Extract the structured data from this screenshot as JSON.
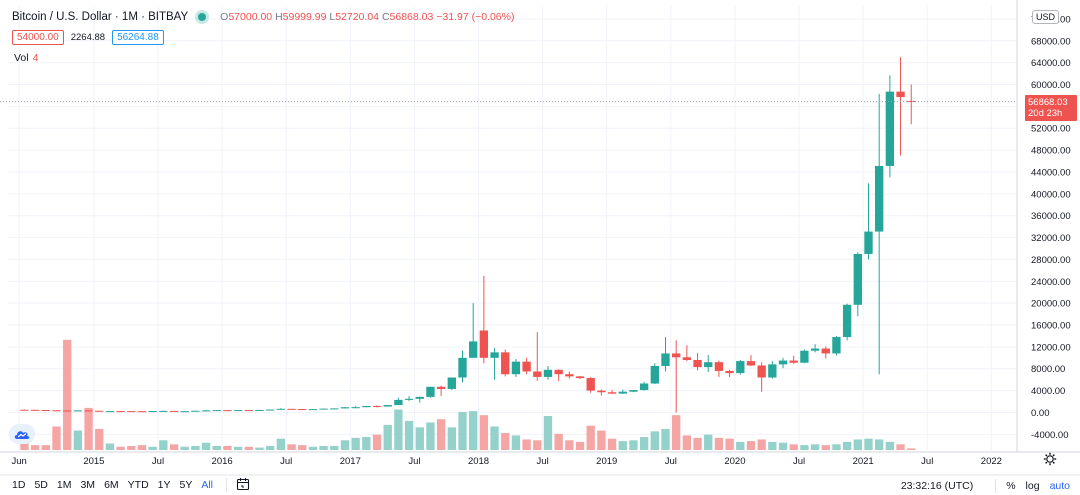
{
  "legend": {
    "title": "Bitcoin / U.S. Dollar · 1M · BITBAY",
    "open_label": "O",
    "open": "57000.00",
    "high_label": "H",
    "high": "59999.99",
    "low_label": "L",
    "low": "52720.04",
    "close_label": "C",
    "close": "56868.03",
    "change": "−31.97 (−0.06%)"
  },
  "bid": "54000.00",
  "spread": "2264.88",
  "ask": "56264.88",
  "volume": {
    "label": "Vol",
    "value": "4"
  },
  "currency": "USD",
  "price_tag": {
    "price": "56868.03",
    "countdown": "20d 23h"
  },
  "toolbar": {
    "ranges": [
      "1D",
      "5D",
      "1M",
      "3M",
      "6M",
      "YTD",
      "1Y",
      "5Y",
      "All"
    ],
    "active_range": "All",
    "time": "23:32:16 (UTC)",
    "percent": "%",
    "log": "log",
    "auto": "auto"
  },
  "colors": {
    "up": "#26a69a",
    "down": "#ef5350",
    "volume_up": "#94d1cb",
    "volume_down": "#f5a6a4",
    "grid": "#f0f3fa",
    "axis_text": "#131722"
  },
  "icons": [
    "tradingview-logo-icon",
    "calendar-icon",
    "settings-gear-icon"
  ],
  "chart_data": {
    "type": "candlestick",
    "interval": "1M",
    "price_axis": {
      "ticks": [
        "-4000.00",
        "0.00",
        "4000.00",
        "8000.00",
        "12000.00",
        "16000.00",
        "20000.00",
        "24000.00",
        "28000.00",
        "32000.00",
        "36000.00",
        "40000.00",
        "44000.00",
        "48000.00",
        "52000.00",
        "56000.00",
        "60000.00",
        "64000.00",
        "68000.00",
        "72000.00"
      ],
      "range": [
        -6500,
        74000
      ]
    },
    "time_axis": {
      "ticks": [
        {
          "label": "Jun",
          "t": 2014.417
        },
        {
          "label": "2015",
          "t": 2015.0
        },
        {
          "label": "Jul",
          "t": 2015.5
        },
        {
          "label": "2016",
          "t": 2016.0
        },
        {
          "label": "Jul",
          "t": 2016.5
        },
        {
          "label": "2017",
          "t": 2017.0
        },
        {
          "label": "Jul",
          "t": 2017.5
        },
        {
          "label": "2018",
          "t": 2018.0
        },
        {
          "label": "Jul",
          "t": 2018.5
        },
        {
          "label": "2019",
          "t": 2019.0
        },
        {
          "label": "Jul",
          "t": 2019.5
        },
        {
          "label": "2020",
          "t": 2020.0
        },
        {
          "label": "Jul",
          "t": 2020.5
        },
        {
          "label": "2021",
          "t": 2021.0
        },
        {
          "label": "Jul",
          "t": 2021.5
        },
        {
          "label": "2022",
          "t": 2022.0
        }
      ],
      "range": [
        2014.33,
        2022.2
      ]
    },
    "last_price": 56868.03,
    "candles": [
      {
        "t": "2014-06",
        "o": 500,
        "h": 520,
        "l": 470,
        "c": 480,
        "v": 0.8
      },
      {
        "t": "2014-07",
        "o": 480,
        "h": 500,
        "l": 440,
        "c": 450,
        "v": 0.6
      },
      {
        "t": "2014-08",
        "o": 450,
        "h": 460,
        "l": 390,
        "c": 400,
        "v": 0.6
      },
      {
        "t": "2014-09",
        "o": 400,
        "h": 420,
        "l": 350,
        "c": 360,
        "v": 2.9
      },
      {
        "t": "2014-10",
        "o": 360,
        "h": 380,
        "l": 330,
        "c": 340,
        "v": 13.6
      },
      {
        "t": "2014-11",
        "o": 340,
        "h": 440,
        "l": 330,
        "c": 380,
        "v": 2.4
      },
      {
        "t": "2014-12",
        "o": 380,
        "h": 400,
        "l": 300,
        "c": 310,
        "v": 5.2
      },
      {
        "t": "2015-01",
        "o": 310,
        "h": 320,
        "l": 160,
        "c": 220,
        "v": 2.6
      },
      {
        "t": "2015-02",
        "o": 220,
        "h": 270,
        "l": 210,
        "c": 250,
        "v": 0.8
      },
      {
        "t": "2015-03",
        "o": 250,
        "h": 290,
        "l": 240,
        "c": 245,
        "v": 0.4
      },
      {
        "t": "2015-04",
        "o": 245,
        "h": 260,
        "l": 210,
        "c": 235,
        "v": 0.5
      },
      {
        "t": "2015-05",
        "o": 235,
        "h": 245,
        "l": 225,
        "c": 230,
        "v": 0.6
      },
      {
        "t": "2015-06",
        "o": 230,
        "h": 265,
        "l": 220,
        "c": 262,
        "v": 0.4
      },
      {
        "t": "2015-07",
        "o": 262,
        "h": 320,
        "l": 255,
        "c": 285,
        "v": 1.2
      },
      {
        "t": "2015-08",
        "o": 285,
        "h": 300,
        "l": 200,
        "c": 230,
        "v": 0.7
      },
      {
        "t": "2015-09",
        "o": 230,
        "h": 245,
        "l": 225,
        "c": 236,
        "v": 0.4
      },
      {
        "t": "2015-10",
        "o": 236,
        "h": 330,
        "l": 235,
        "c": 315,
        "v": 0.5
      },
      {
        "t": "2015-11",
        "o": 315,
        "h": 500,
        "l": 300,
        "c": 378,
        "v": 0.9
      },
      {
        "t": "2015-12",
        "o": 378,
        "h": 470,
        "l": 350,
        "c": 430,
        "v": 0.5
      },
      {
        "t": "2016-01",
        "o": 430,
        "h": 460,
        "l": 350,
        "c": 370,
        "v": 0.5
      },
      {
        "t": "2016-02",
        "o": 370,
        "h": 440,
        "l": 360,
        "c": 437,
        "v": 0.4
      },
      {
        "t": "2016-03",
        "o": 437,
        "h": 440,
        "l": 400,
        "c": 416,
        "v": 0.4
      },
      {
        "t": "2016-04",
        "o": 416,
        "h": 470,
        "l": 410,
        "c": 448,
        "v": 0.3
      },
      {
        "t": "2016-05",
        "o": 448,
        "h": 550,
        "l": 440,
        "c": 530,
        "v": 0.5
      },
      {
        "t": "2016-06",
        "o": 530,
        "h": 780,
        "l": 520,
        "c": 670,
        "v": 1.4
      },
      {
        "t": "2016-07",
        "o": 670,
        "h": 680,
        "l": 600,
        "c": 624,
        "v": 0.7
      },
      {
        "t": "2016-08",
        "o": 624,
        "h": 630,
        "l": 480,
        "c": 575,
        "v": 0.6
      },
      {
        "t": "2016-09",
        "o": 575,
        "h": 620,
        "l": 570,
        "c": 609,
        "v": 0.4
      },
      {
        "t": "2016-10",
        "o": 609,
        "h": 720,
        "l": 605,
        "c": 700,
        "v": 0.5
      },
      {
        "t": "2016-11",
        "o": 700,
        "h": 760,
        "l": 680,
        "c": 745,
        "v": 0.5
      },
      {
        "t": "2016-12",
        "o": 745,
        "h": 980,
        "l": 740,
        "c": 960,
        "v": 1.2
      },
      {
        "t": "2017-01",
        "o": 960,
        "h": 1150,
        "l": 750,
        "c": 970,
        "v": 1.5
      },
      {
        "t": "2017-02",
        "o": 970,
        "h": 1200,
        "l": 940,
        "c": 1190,
        "v": 1.6
      },
      {
        "t": "2017-03",
        "o": 1190,
        "h": 1300,
        "l": 900,
        "c": 1080,
        "v": 1.9
      },
      {
        "t": "2017-04",
        "o": 1080,
        "h": 1350,
        "l": 1070,
        "c": 1350,
        "v": 3.1
      },
      {
        "t": "2017-05",
        "o": 1350,
        "h": 2700,
        "l": 1350,
        "c": 2300,
        "v": 5.0
      },
      {
        "t": "2017-06",
        "o": 2300,
        "h": 3000,
        "l": 2100,
        "c": 2500,
        "v": 3.6
      },
      {
        "t": "2017-07",
        "o": 2500,
        "h": 2900,
        "l": 1800,
        "c": 2850,
        "v": 2.8
      },
      {
        "t": "2017-08",
        "o": 2850,
        "h": 4700,
        "l": 2700,
        "c": 4700,
        "v": 3.4
      },
      {
        "t": "2017-09",
        "o": 4700,
        "h": 4900,
        "l": 3000,
        "c": 4300,
        "v": 3.8
      },
      {
        "t": "2017-10",
        "o": 4300,
        "h": 6400,
        "l": 4100,
        "c": 6400,
        "v": 2.8
      },
      {
        "t": "2017-11",
        "o": 6400,
        "h": 11300,
        "l": 5500,
        "c": 10000,
        "v": 4.7
      },
      {
        "t": "2017-12",
        "o": 10000,
        "h": 20000,
        "l": 10500,
        "c": 13000,
        "v": 4.8
      },
      {
        "t": "2018-01",
        "o": 15000,
        "h": 25000,
        "l": 9000,
        "c": 10000,
        "v": 4.3
      },
      {
        "t": "2018-02",
        "o": 10000,
        "h": 11800,
        "l": 6000,
        "c": 11000,
        "v": 2.9
      },
      {
        "t": "2018-03",
        "o": 11000,
        "h": 11500,
        "l": 6600,
        "c": 7000,
        "v": 2.1
      },
      {
        "t": "2018-04",
        "o": 7000,
        "h": 9800,
        "l": 6500,
        "c": 9300,
        "v": 1.8
      },
      {
        "t": "2018-05",
        "o": 9300,
        "h": 10000,
        "l": 7000,
        "c": 7500,
        "v": 1.3
      },
      {
        "t": "2018-06",
        "o": 7500,
        "h": 14700,
        "l": 5800,
        "c": 6500,
        "v": 1.2
      },
      {
        "t": "2018-07",
        "o": 6500,
        "h": 8500,
        "l": 6000,
        "c": 7800,
        "v": 4.2
      },
      {
        "t": "2018-08",
        "o": 7800,
        "h": 7900,
        "l": 5800,
        "c": 7000,
        "v": 2.0
      },
      {
        "t": "2018-09",
        "o": 7000,
        "h": 7500,
        "l": 6200,
        "c": 6600,
        "v": 1.2
      },
      {
        "t": "2018-10",
        "o": 6600,
        "h": 6700,
        "l": 6100,
        "c": 6300,
        "v": 1.0
      },
      {
        "t": "2018-11",
        "o": 6300,
        "h": 6500,
        "l": 3600,
        "c": 4000,
        "v": 3.0
      },
      {
        "t": "2018-12",
        "o": 4000,
        "h": 4200,
        "l": 3100,
        "c": 3700,
        "v": 2.4
      },
      {
        "t": "2019-01",
        "o": 3700,
        "h": 4100,
        "l": 3400,
        "c": 3450,
        "v": 1.4
      },
      {
        "t": "2019-02",
        "o": 3450,
        "h": 4200,
        "l": 3400,
        "c": 3800,
        "v": 1.1
      },
      {
        "t": "2019-03",
        "o": 3800,
        "h": 4100,
        "l": 3700,
        "c": 4100,
        "v": 1.2
      },
      {
        "t": "2019-04",
        "o": 4100,
        "h": 5600,
        "l": 4000,
        "c": 5300,
        "v": 1.6
      },
      {
        "t": "2019-05",
        "o": 5300,
        "h": 9000,
        "l": 5200,
        "c": 8500,
        "v": 2.3
      },
      {
        "t": "2019-06",
        "o": 8500,
        "h": 13800,
        "l": 7500,
        "c": 10800,
        "v": 2.6
      },
      {
        "t": "2019-07",
        "o": 10800,
        "h": 13200,
        "l": 0,
        "c": 10100,
        "v": 4.3
      },
      {
        "t": "2019-08",
        "o": 10100,
        "h": 12300,
        "l": 9400,
        "c": 9600,
        "v": 1.8
      },
      {
        "t": "2019-09",
        "o": 9600,
        "h": 10900,
        "l": 7700,
        "c": 8300,
        "v": 1.5
      },
      {
        "t": "2019-10",
        "o": 8300,
        "h": 10500,
        "l": 7400,
        "c": 9200,
        "v": 1.9
      },
      {
        "t": "2019-11",
        "o": 9200,
        "h": 9500,
        "l": 6500,
        "c": 7600,
        "v": 1.5
      },
      {
        "t": "2019-12",
        "o": 7600,
        "h": 7800,
        "l": 6500,
        "c": 7200,
        "v": 1.4
      },
      {
        "t": "2020-01",
        "o": 7200,
        "h": 9600,
        "l": 6900,
        "c": 9400,
        "v": 1.0
      },
      {
        "t": "2020-02",
        "o": 9400,
        "h": 10500,
        "l": 8500,
        "c": 8600,
        "v": 1.1
      },
      {
        "t": "2020-03",
        "o": 8600,
        "h": 9200,
        "l": 3800,
        "c": 6400,
        "v": 1.3
      },
      {
        "t": "2020-04",
        "o": 6400,
        "h": 9400,
        "l": 6200,
        "c": 8800,
        "v": 1.0
      },
      {
        "t": "2020-05",
        "o": 8800,
        "h": 10000,
        "l": 8100,
        "c": 9500,
        "v": 0.9
      },
      {
        "t": "2020-06",
        "o": 9500,
        "h": 10400,
        "l": 8900,
        "c": 9100,
        "v": 0.7
      },
      {
        "t": "2020-07",
        "o": 9100,
        "h": 11500,
        "l": 9000,
        "c": 11300,
        "v": 0.6
      },
      {
        "t": "2020-08",
        "o": 11300,
        "h": 12500,
        "l": 11000,
        "c": 11700,
        "v": 0.7
      },
      {
        "t": "2020-09",
        "o": 11700,
        "h": 12100,
        "l": 9900,
        "c": 10800,
        "v": 0.6
      },
      {
        "t": "2020-10",
        "o": 10800,
        "h": 14000,
        "l": 10400,
        "c": 13800,
        "v": 0.7
      },
      {
        "t": "2020-11",
        "o": 13800,
        "h": 19900,
        "l": 13200,
        "c": 19700,
        "v": 1.0
      },
      {
        "t": "2020-12",
        "o": 19700,
        "h": 29300,
        "l": 17600,
        "c": 29000,
        "v": 1.3
      },
      {
        "t": "2021-01",
        "o": 29000,
        "h": 41900,
        "l": 28000,
        "c": 33100,
        "v": 1.4
      },
      {
        "t": "2021-02",
        "o": 33100,
        "h": 58300,
        "l": 7000,
        "c": 45100,
        "v": 1.3
      },
      {
        "t": "2021-03",
        "o": 45100,
        "h": 61700,
        "l": 43000,
        "c": 58700,
        "v": 1.0
      },
      {
        "t": "2021-04",
        "o": 58700,
        "h": 65000,
        "l": 47000,
        "c": 57700,
        "v": 0.7
      },
      {
        "t": "2021-05",
        "o": 57000,
        "h": 59999.99,
        "l": 52720.04,
        "c": 56868.03,
        "v": 0.2
      }
    ]
  }
}
